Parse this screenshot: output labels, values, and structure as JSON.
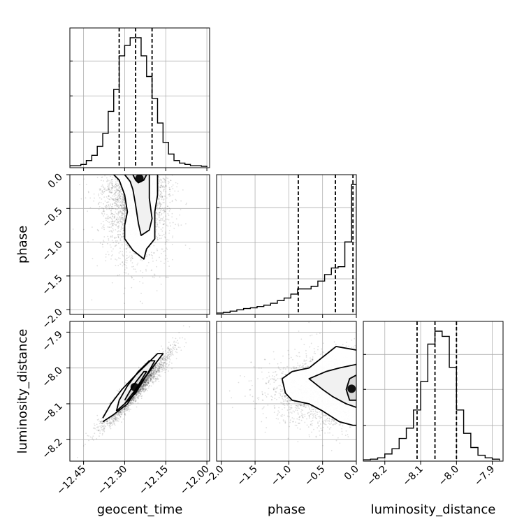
{
  "chart_data": {
    "type": "corner",
    "parameters": [
      "geocent_time",
      "phase",
      "luminosity_distance"
    ],
    "grid": true,
    "ranges": {
      "geocent_time": [
        -12.5,
        -11.99
      ],
      "phase": [
        -2.07,
        0.0
      ],
      "luminosity_distance": [
        -8.26,
        -7.87
      ]
    },
    "ticks": {
      "geocent_time": {
        "values": [
          -12.45,
          -12.3,
          -12.15,
          -12.0
        ],
        "labels": [
          "−12.45",
          "−12.30",
          "−12.15",
          "−12.00"
        ]
      },
      "phase": {
        "values": [
          -2.0,
          -1.5,
          -1.0,
          -0.5,
          0.0
        ],
        "labels": [
          "−2.0",
          "−1.5",
          "−1.0",
          "−0.5",
          "0.0"
        ]
      },
      "luminosity_distance": {
        "values": [
          -8.2,
          -8.1,
          -8.0,
          -7.9
        ],
        "labels": [
          "−8.2",
          "−8.1",
          "−8.0",
          "−7.9"
        ]
      }
    },
    "quantiles": {
      "geocent_time": [
        -12.32,
        -12.26,
        -12.2
      ],
      "phase": [
        -0.86,
        -0.31,
        -0.05
      ],
      "luminosity_distance": [
        -8.11,
        -8.06,
        -8.0
      ]
    },
    "histograms": {
      "geocent_time": {
        "edges": [
          -12.5,
          -12.48,
          -12.46,
          -12.44,
          -12.42,
          -12.4,
          -12.38,
          -12.36,
          -12.34,
          -12.32,
          -12.3,
          -12.28,
          -12.26,
          -12.24,
          -12.22,
          -12.2,
          -12.18,
          -12.16,
          -12.14,
          -12.12,
          -12.1,
          -12.08,
          -12.06,
          -12.04,
          -12.02,
          -12.0
        ],
        "counts": [
          0.01,
          0.01,
          0.02,
          0.05,
          0.09,
          0.16,
          0.26,
          0.43,
          0.6,
          0.86,
          0.94,
          1.0,
          1.0,
          0.86,
          0.7,
          0.53,
          0.34,
          0.19,
          0.1,
          0.05,
          0.03,
          0.02,
          0.01,
          0.01,
          0.005
        ]
      },
      "phase": {
        "edges": [
          -2.07,
          -1.97,
          -1.87,
          -1.77,
          -1.67,
          -1.57,
          -1.47,
          -1.37,
          -1.27,
          -1.17,
          -1.07,
          -0.97,
          -0.87,
          -0.77,
          -0.67,
          -0.57,
          -0.47,
          -0.37,
          -0.27,
          -0.17,
          -0.07,
          0.0
        ],
        "counts": [
          0.005,
          0.01,
          0.02,
          0.03,
          0.04,
          0.045,
          0.055,
          0.065,
          0.08,
          0.1,
          0.12,
          0.15,
          0.19,
          0.19,
          0.21,
          0.25,
          0.3,
          0.35,
          0.36,
          0.55,
          0.99
        ]
      },
      "luminosity_distance": {
        "edges": [
          -8.26,
          -8.24,
          -8.22,
          -8.2,
          -8.18,
          -8.16,
          -8.14,
          -8.12,
          -8.1,
          -8.08,
          -8.06,
          -8.04,
          -8.02,
          -8.0,
          -7.98,
          -7.96,
          -7.94,
          -7.92,
          -7.9,
          -7.88
        ],
        "counts": [
          0.005,
          0.01,
          0.02,
          0.05,
          0.09,
          0.17,
          0.25,
          0.39,
          0.61,
          0.9,
          1.0,
          0.96,
          0.72,
          0.39,
          0.21,
          0.1,
          0.04,
          0.02,
          0.01
        ]
      }
    },
    "scatter": {
      "phase_vs_geocent_time": {
        "x_center": -12.26,
        "x_sd": 0.06,
        "y_mode": 0.0,
        "y_scale": 0.55,
        "n": 2600
      },
      "luminosity_distance_vs_geocent_time": {
        "x_center": -12.26,
        "x_sd": 0.06,
        "y_center": -8.06,
        "y_sd": 0.05,
        "correlation": 0.95,
        "n": 2600
      },
      "luminosity_distance_vs_phase": {
        "x_mode": 0.0,
        "x_scale": 0.55,
        "y_center": -8.06,
        "y_sd": 0.05,
        "n": 2600
      }
    },
    "contours": {
      "phase_vs_geocent_time": [
        [
          [
            -12.34,
            0.0
          ],
          [
            -12.32,
            -0.08
          ],
          [
            -12.3,
            -0.3
          ],
          [
            -12.29,
            -0.55
          ],
          [
            -12.3,
            -0.75
          ],
          [
            -12.3,
            -0.95
          ],
          [
            -12.27,
            -1.12
          ],
          [
            -12.23,
            -1.25
          ],
          [
            -12.22,
            -1.1
          ],
          [
            -12.19,
            -0.95
          ],
          [
            -12.19,
            -0.75
          ],
          [
            -12.19,
            -0.55
          ],
          [
            -12.18,
            -0.3
          ],
          [
            -12.18,
            -0.08
          ],
          [
            -12.18,
            0.0
          ]
        ],
        [
          [
            -12.3,
            0.0
          ],
          [
            -12.28,
            -0.1
          ],
          [
            -12.27,
            -0.22
          ],
          [
            -12.26,
            -0.45
          ],
          [
            -12.25,
            -0.72
          ],
          [
            -12.24,
            -0.9
          ],
          [
            -12.21,
            -0.82
          ],
          [
            -12.2,
            -0.65
          ],
          [
            -12.21,
            -0.35
          ],
          [
            -12.21,
            -0.12
          ],
          [
            -12.21,
            0.0
          ]
        ],
        [
          [
            -12.27,
            0.0
          ],
          [
            -12.26,
            -0.08
          ],
          [
            -12.25,
            -0.12
          ],
          [
            -12.23,
            -0.08
          ],
          [
            -12.22,
            0.0
          ]
        ]
      ],
      "luminosity_distance_vs_geocent_time": [
        [
          [
            -12.38,
            -8.15
          ],
          [
            -12.34,
            -8.13
          ],
          [
            -12.29,
            -8.1
          ],
          [
            -12.24,
            -8.04
          ],
          [
            -12.19,
            -7.99
          ],
          [
            -12.16,
            -7.96
          ],
          [
            -12.18,
            -7.96
          ],
          [
            -12.22,
            -7.99
          ],
          [
            -12.26,
            -8.02
          ],
          [
            -12.31,
            -8.06
          ],
          [
            -12.35,
            -8.1
          ],
          [
            -12.38,
            -8.14
          ]
        ],
        [
          [
            -12.33,
            -8.12
          ],
          [
            -12.3,
            -8.1
          ],
          [
            -12.26,
            -8.07
          ],
          [
            -12.22,
            -8.02
          ],
          [
            -12.19,
            -7.98
          ],
          [
            -12.21,
            -7.98
          ],
          [
            -12.25,
            -8.01
          ],
          [
            -12.29,
            -8.05
          ],
          [
            -12.32,
            -8.09
          ],
          [
            -12.33,
            -8.12
          ]
        ],
        [
          [
            -12.3,
            -8.1
          ],
          [
            -12.26,
            -8.06
          ],
          [
            -12.22,
            -8.01
          ],
          [
            -12.23,
            -8.01
          ],
          [
            -12.27,
            -8.05
          ],
          [
            -12.3,
            -8.09
          ]
        ]
      ],
      "luminosity_distance_vs_phase": [
        [
          [
            0.0,
            -7.95
          ],
          [
            -0.3,
            -7.94
          ],
          [
            -0.5,
            -7.97
          ],
          [
            -0.7,
            -8.0
          ],
          [
            -0.95,
            -8.01
          ],
          [
            -1.1,
            -8.03
          ],
          [
            -1.05,
            -8.07
          ],
          [
            -0.95,
            -8.09
          ],
          [
            -0.7,
            -8.1
          ],
          [
            -0.5,
            -8.12
          ],
          [
            -0.25,
            -8.15
          ],
          [
            -0.05,
            -8.16
          ],
          [
            0.0,
            -8.16
          ]
        ],
        [
          [
            0.0,
            -7.99
          ],
          [
            -0.25,
            -8.0
          ],
          [
            -0.45,
            -8.01
          ],
          [
            -0.7,
            -8.03
          ],
          [
            -0.5,
            -8.06
          ],
          [
            -0.35,
            -8.08
          ],
          [
            -0.15,
            -8.1
          ],
          [
            0.0,
            -8.11
          ]
        ],
        [
          [
            0.0,
            -8.02
          ],
          [
            -0.1,
            -8.03
          ],
          [
            -0.15,
            -8.06
          ],
          [
            -0.1,
            -8.09
          ],
          [
            0.0,
            -8.09
          ]
        ]
      ]
    }
  }
}
